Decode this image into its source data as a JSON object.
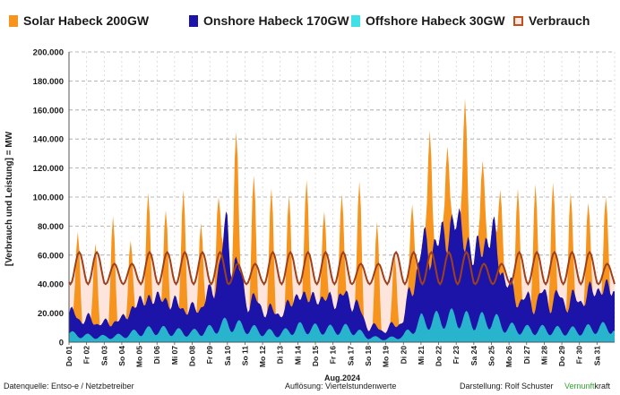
{
  "legend": [
    {
      "label": "Solar Habeck 200GW",
      "color": "#f7941d",
      "kind": "fill"
    },
    {
      "label": "Onshore Habeck 170GW",
      "color": "#1c14a8",
      "kind": "fill"
    },
    {
      "label": "Offshore Habeck 30GW",
      "color": "#40e0e8",
      "kind": "fill"
    },
    {
      "label": "Verbrauch",
      "color": "#c0501e",
      "kind": "box"
    }
  ],
  "chart_data": {
    "type": "area",
    "ylabel": "[Verbrauch und Leistung] = MW",
    "xlabel": "Aug.2024",
    "ylim": [
      0,
      200000
    ],
    "yticks": [
      "0",
      "20.000",
      "40.000",
      "60.000",
      "80.000",
      "100.000",
      "120.000",
      "140.000",
      "160.000",
      "180.000",
      "200.000"
    ],
    "grid": true,
    "legend_position": "top",
    "categories": [
      "Do 01",
      "Fr 02",
      "Sa 03",
      "So 04",
      "Mo 05",
      "Di 06",
      "Mi 07",
      "Do 08",
      "Fr 09",
      "Sa 10",
      "So 11",
      "Mo 12",
      "Di 13",
      "Mi 14",
      "Do 15",
      "Fr 16",
      "Sa 17",
      "So 18",
      "Mo 19",
      "Di 20",
      "Mi 21",
      "Do 22",
      "Fr 23",
      "Sa 24",
      "So 25",
      "Mo 26",
      "Di 27",
      "Mi 28",
      "Do 29",
      "Fr 30",
      "Sa 31"
    ],
    "series": [
      {
        "name": "Solar Habeck 200GW",
        "daily_peak_total": [
          76000,
          68000,
          87000,
          70000,
          103000,
          91000,
          105000,
          82000,
          100000,
          145000,
          115000,
          106000,
          101000,
          112000,
          90000,
          102000,
          111000,
          83000,
          60000,
          95000,
          146000,
          135000,
          168000,
          125000,
          105000,
          106000,
          109000,
          110000,
          103000,
          96000,
          100000
        ]
      },
      {
        "name": "Onshore Habeck 170GW",
        "daily_peak": [
          18000,
          15000,
          12000,
          15000,
          28000,
          30000,
          26000,
          20000,
          30000,
          82000,
          30000,
          22000,
          18000,
          30000,
          28000,
          28000,
          30000,
          10000,
          8000,
          15000,
          65000,
          70000,
          90000,
          60000,
          80000,
          35000,
          25000,
          30000,
          28000,
          28000,
          36000
        ]
      },
      {
        "name": "Offshore Habeck 30GW",
        "daily_peak": [
          8000,
          6000,
          5000,
          6000,
          10000,
          12000,
          10000,
          9000,
          12000,
          18000,
          14000,
          10000,
          8000,
          14000,
          13000,
          12000,
          13000,
          5000,
          3000,
          6000,
          20000,
          22000,
          24000,
          20000,
          22000,
          14000,
          12000,
          12000,
          11000,
          11000,
          14000
        ]
      },
      {
        "name": "Verbrauch",
        "weekday_peak": 62000,
        "weekend_peak": 54000,
        "night_min": 40000
      }
    ]
  },
  "footer": {
    "source": "Datenquelle: Entso-e  / Netzbetreiber",
    "resolution": "Auflösung: Viertelstundenwerte",
    "author": "Darstellung:  Rolf Schuster",
    "brand_prefix": "Vernunft",
    "brand_suffix": "kraft"
  }
}
